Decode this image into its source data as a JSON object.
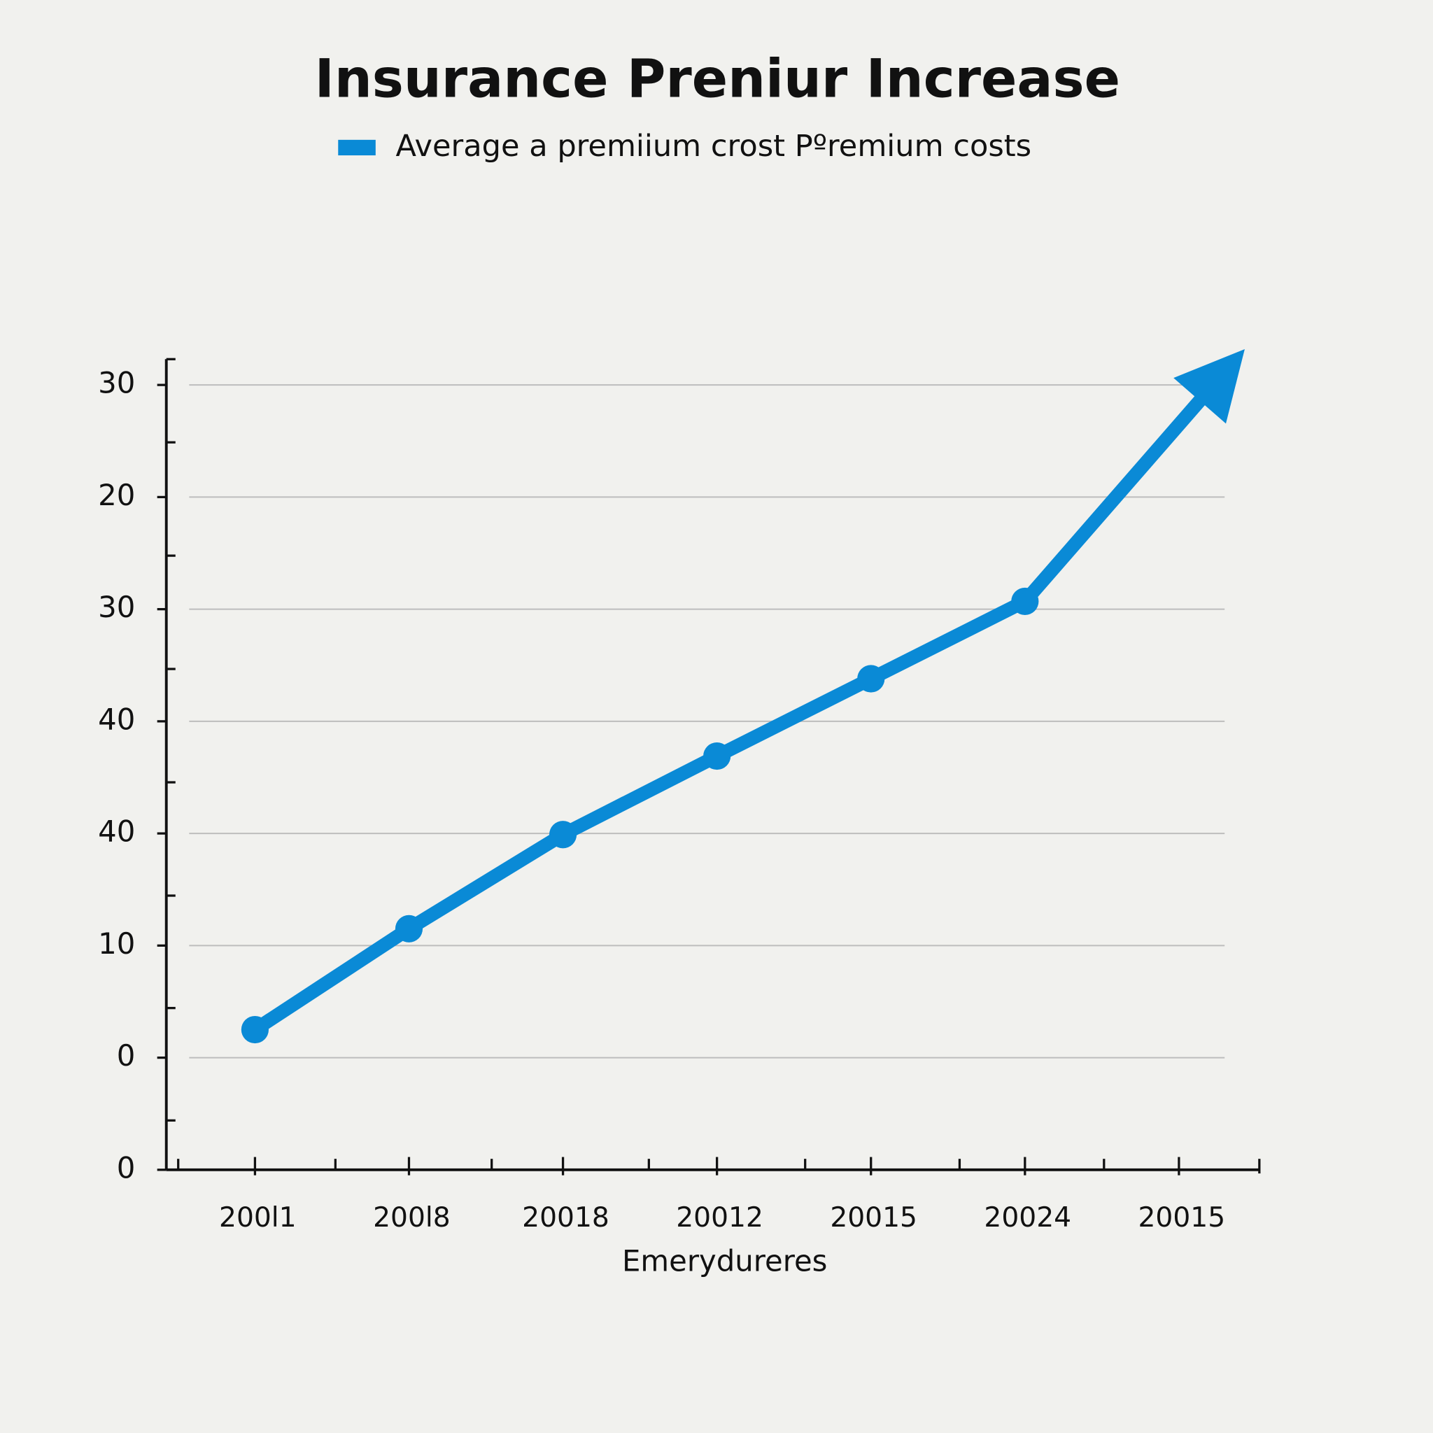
{
  "chart_data": {
    "type": "line",
    "title": "Insurance Preniur Increase",
    "x_label": "Emerydureres",
    "categories": [
      "200l1",
      "200l8",
      "20018",
      "20012",
      "20015",
      "20024",
      "20015"
    ],
    "series": [
      {
        "name": "Average a premiium crost Pºremium costs",
        "color": "#0a8ad6",
        "values": [
          2.5,
          11.5,
          19.9,
          26.9,
          33.8,
          40.7,
          null
        ]
      }
    ],
    "ylim": [
      -10,
      62.3
    ],
    "yticks": [
      {
        "value": -10,
        "label": "0"
      },
      0,
      10,
      {
        "value": 20,
        "label": "40"
      },
      {
        "value": 30,
        "label": "40"
      },
      {
        "value": 40,
        "label": "30"
      },
      {
        "value": 50,
        "label": "20"
      },
      {
        "value": 60,
        "label": "30"
      }
    ],
    "grid": true,
    "legend": "top"
  }
}
